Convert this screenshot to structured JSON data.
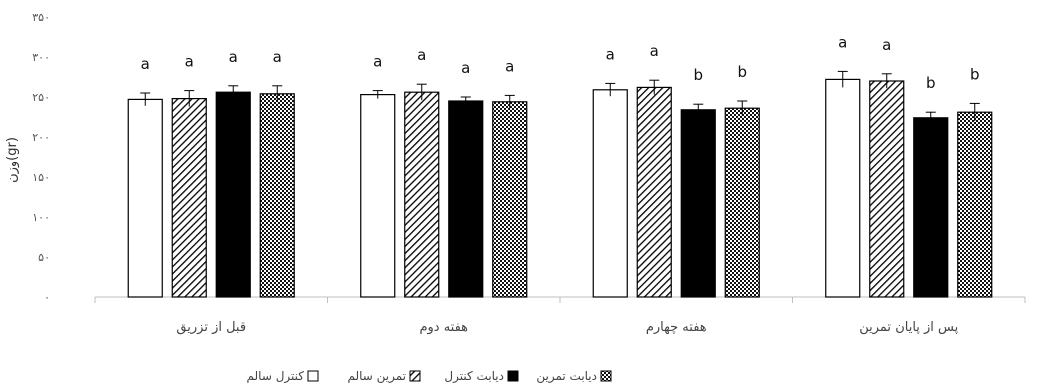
{
  "chart_data": {
    "type": "bar",
    "ylabel": "وزن(gr)",
    "ylim": [
      0,
      350
    ],
    "ytick_values": [
      0,
      50,
      100,
      150,
      200,
      250,
      300,
      350
    ],
    "ytick_labels": [
      "۰",
      "۵۰",
      "۱۰۰",
      "۱۵۰",
      "۲۰۰",
      "۲۵۰",
      "۳۰۰",
      "۳۵۰"
    ],
    "grid": false,
    "legend_position": "bottom",
    "categories": [
      "قبل از تزریق",
      "هفته دوم",
      "هفته چهارم",
      "پس از پایان تمرین"
    ],
    "series": [
      {
        "name": "کنترل سالم",
        "pattern": "white",
        "values": [
          247,
          253,
          259,
          272
        ],
        "errors": [
          8,
          5,
          8,
          10
        ],
        "sig": [
          "a",
          "a",
          "a",
          "a"
        ]
      },
      {
        "name": "تمرین سالم",
        "pattern": "hatch",
        "values": [
          248,
          256,
          262,
          270
        ],
        "errors": [
          10,
          10,
          9,
          9
        ],
        "sig": [
          "a",
          "a",
          "a",
          "a"
        ]
      },
      {
        "name": "دیابت کنترل",
        "pattern": "black",
        "values": [
          256,
          245,
          234,
          224
        ],
        "errors": [
          8,
          5,
          7,
          7
        ],
        "sig": [
          "a",
          "a",
          "b",
          "b"
        ]
      },
      {
        "name": "دیابت تمرین",
        "pattern": "dots",
        "values": [
          254,
          244,
          236,
          231
        ],
        "errors": [
          10,
          8,
          9,
          11
        ],
        "sig": [
          "a",
          "a",
          "b",
          "b"
        ]
      }
    ]
  },
  "colors": {
    "axis": "#bfbfbf",
    "bar_stroke": "#000000",
    "black_fill": "#000000",
    "white_fill": "#ffffff"
  }
}
